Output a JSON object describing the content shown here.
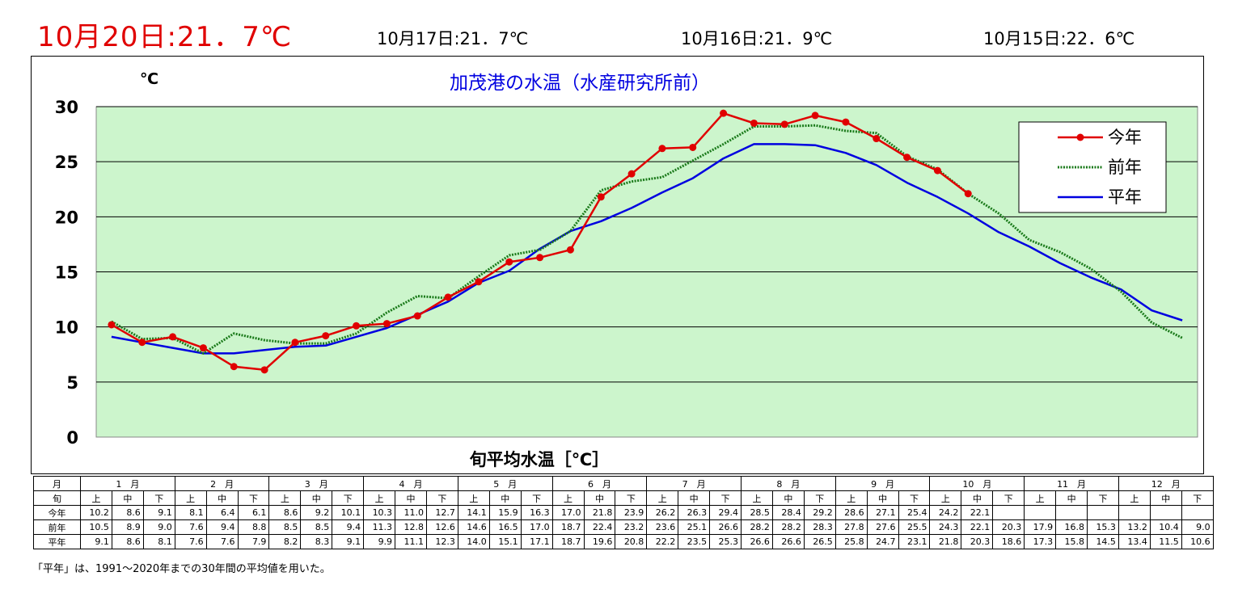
{
  "header": {
    "main": "10月20日:21．7℃",
    "prev": [
      "10月17日:21．7℃",
      "10月16日:21．9℃",
      "10月15日:22．6℃"
    ]
  },
  "colors": {
    "this_year": "#e00000",
    "last_year": "#1a7a1a",
    "normal": "#0000e0",
    "plot_bg": "#ccf5cc",
    "title": "#0000e0"
  },
  "chart_data": {
    "type": "line",
    "title": "加茂港の水温（水産研究所前）",
    "ylabel": "℃",
    "xlabel": "旬平均水温［℃］",
    "ylim": [
      0,
      30
    ],
    "yticks": [
      0,
      5,
      10,
      15,
      20,
      25,
      30
    ],
    "grid": true,
    "legend_position": "top-right",
    "months": [
      "1　月",
      "2　月",
      "3　月",
      "4　月",
      "5　月",
      "6　月",
      "7　月",
      "8　月",
      "9　月",
      "10　月",
      "11　月",
      "12　月"
    ],
    "periods": [
      "上",
      "中",
      "下"
    ],
    "series": [
      {
        "name": "今年",
        "marker": true,
        "values": [
          10.2,
          8.6,
          9.1,
          8.1,
          6.4,
          6.1,
          8.6,
          9.2,
          10.1,
          10.3,
          11.0,
          12.7,
          14.1,
          15.9,
          16.3,
          17.0,
          21.8,
          23.9,
          26.2,
          26.3,
          29.4,
          28.5,
          28.4,
          29.2,
          28.6,
          27.1,
          25.4,
          24.2,
          22.1,
          null,
          null,
          null,
          null,
          null,
          null,
          null
        ]
      },
      {
        "name": "前年",
        "marker": false,
        "values": [
          10.5,
          8.9,
          9.0,
          7.6,
          9.4,
          8.8,
          8.5,
          8.5,
          9.4,
          11.3,
          12.8,
          12.6,
          14.6,
          16.5,
          17.0,
          18.7,
          22.4,
          23.2,
          23.6,
          25.1,
          26.6,
          28.2,
          28.2,
          28.3,
          27.8,
          27.6,
          25.5,
          24.3,
          22.1,
          20.3,
          17.9,
          16.8,
          15.3,
          13.2,
          10.4,
          9.0
        ]
      },
      {
        "name": "平年",
        "marker": false,
        "values": [
          9.1,
          8.6,
          8.1,
          7.6,
          7.6,
          7.9,
          8.2,
          8.3,
          9.1,
          9.9,
          11.1,
          12.3,
          14.0,
          15.1,
          17.1,
          18.7,
          19.6,
          20.8,
          22.2,
          23.5,
          25.3,
          26.6,
          26.6,
          26.5,
          25.8,
          24.7,
          23.1,
          21.8,
          20.3,
          18.6,
          17.3,
          15.8,
          14.5,
          13.4,
          11.5,
          10.6
        ]
      }
    ]
  },
  "table": {
    "row_month_label": "月",
    "row_period_label": "旬",
    "row_labels": [
      "今年",
      "前年",
      "平年"
    ]
  },
  "footnote": "「平年」は、1991〜2020年までの30年間の平均値を用いた。"
}
